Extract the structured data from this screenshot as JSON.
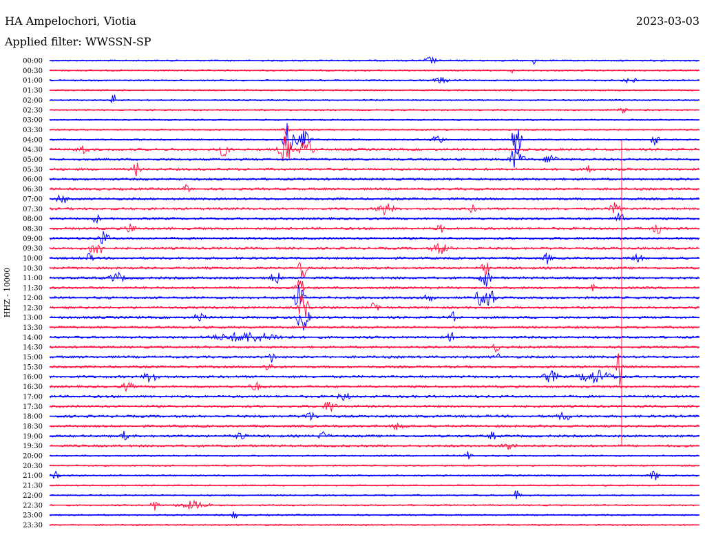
{
  "header": {
    "station": "HA Ampelochori, Viotia",
    "date": "2023-03-03",
    "filter_label": "Applied filter: WWSSN-SP"
  },
  "axis": {
    "channel_label": "HHZ - 10000"
  },
  "colors": {
    "blue": "#0000ff",
    "red": "#ff1744",
    "background": "#ffffff"
  },
  "chart_data": {
    "type": "line",
    "title": "HA Ampelochori, Viotia",
    "ylabel": "HHZ - 10000",
    "row_interval_minutes": 30,
    "rows": [
      "00:00",
      "00:30",
      "01:00",
      "01:30",
      "02:00",
      "02:30",
      "03:00",
      "03:30",
      "04:00",
      "04:30",
      "05:00",
      "05:30",
      "06:00",
      "06:30",
      "07:00",
      "07:30",
      "08:00",
      "08:30",
      "09:00",
      "09:30",
      "10:00",
      "10:30",
      "11:00",
      "11:30",
      "12:00",
      "12:30",
      "13:00",
      "13:30",
      "14:00",
      "14:30",
      "15:00",
      "15:30",
      "16:00",
      "16:30",
      "17:00",
      "17:30",
      "18:00",
      "18:30",
      "19:00",
      "19:30",
      "20:00",
      "20:30",
      "21:00",
      "21:30",
      "22:00",
      "22:30",
      "23:00",
      "23:30"
    ],
    "row_colors": [
      "blue",
      "red"
    ],
    "grid": false,
    "legend": "none"
  }
}
